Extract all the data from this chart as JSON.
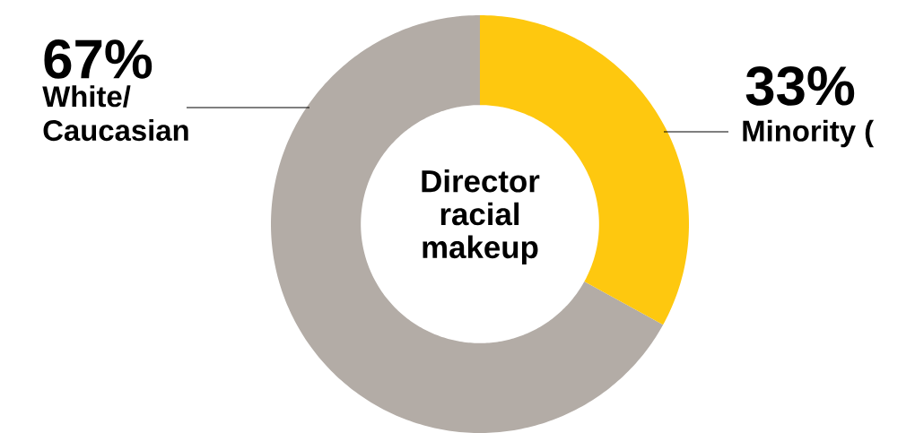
{
  "chart_data": {
    "type": "donut",
    "title": "Director racial makeup",
    "categories": [
      "White/ Caucasian",
      "Minority ("
    ],
    "values": [
      67,
      33
    ],
    "value_labels": [
      "67%",
      "33%"
    ],
    "colors": [
      "#b3aca6",
      "#fec80f"
    ]
  }
}
